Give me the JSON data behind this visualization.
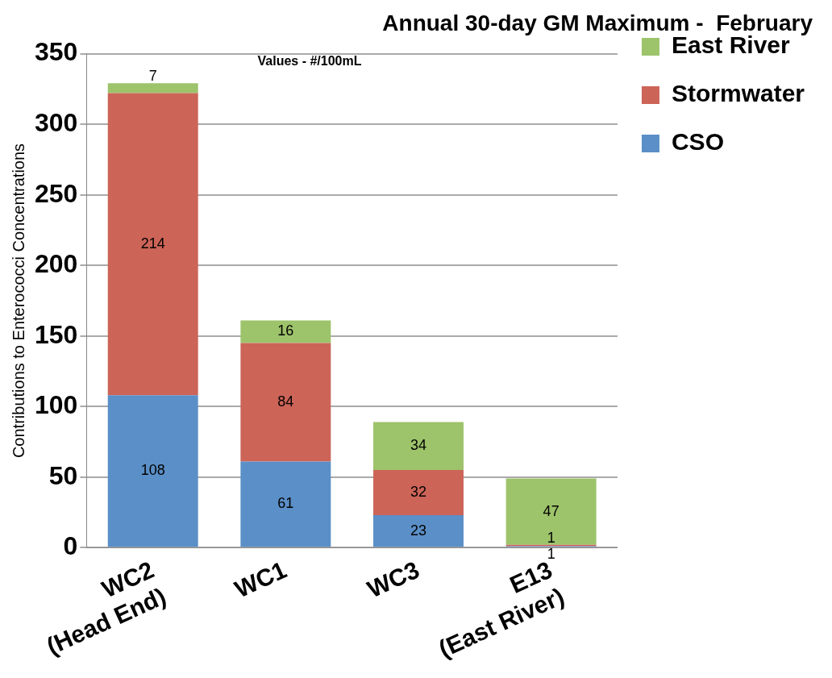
{
  "chart_data": {
    "type": "bar",
    "title": "Annual 30-day GM Maximum -  February",
    "ylabel": "Contributions to Enterococci Concentrations",
    "annotations": [
      "Values - #/100mL"
    ],
    "categories": [
      "WC2\n(Head End)",
      "WC1",
      "WC3",
      "E13\n(East River)"
    ],
    "stacked": true,
    "series": [
      {
        "name": "CSO",
        "color": "#5b8fc7",
        "values": [
          108,
          61,
          23,
          1
        ]
      },
      {
        "name": "Stormwater",
        "color": "#cc6458",
        "values": [
          214,
          84,
          32,
          1
        ]
      },
      {
        "name": "East River",
        "color": "#9dc36b",
        "values": [
          7,
          16,
          34,
          47
        ]
      }
    ],
    "ylim": [
      0,
      350
    ],
    "yticks": [
      0,
      50,
      100,
      150,
      200,
      250,
      300,
      350
    ],
    "grid": "y",
    "legend": "top right",
    "data_labels": true
  }
}
